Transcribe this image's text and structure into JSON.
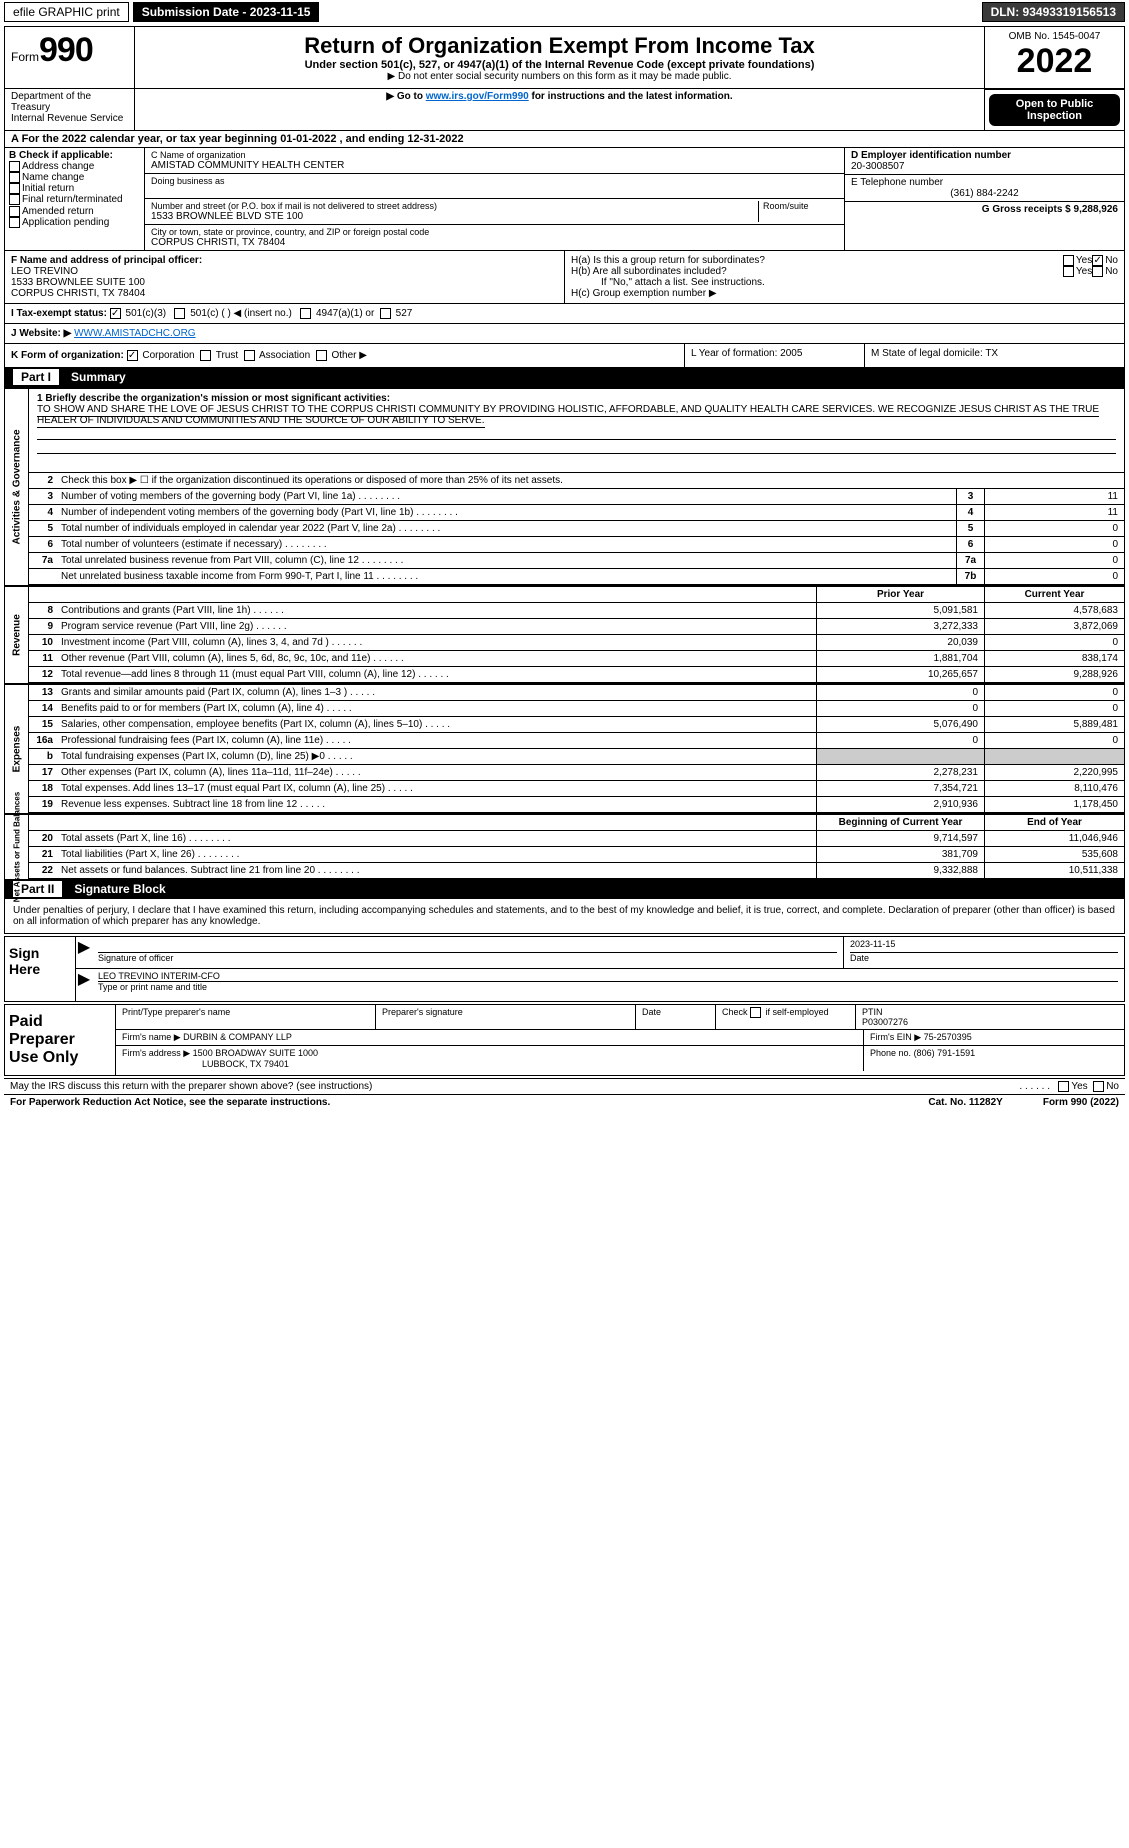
{
  "topbar": {
    "efile_label": "efile GRAPHIC print",
    "submission_label": "Submission Date - 2023-11-15",
    "dln_label": "DLN: 93493319156513"
  },
  "header": {
    "form_prefix": "Form",
    "form_number": "990",
    "title": "Return of Organization Exempt From Income Tax",
    "subtitle": "Under section 501(c), 527, or 4947(a)(1) of the Internal Revenue Code (except private foundations)",
    "warning": "▶ Do not enter social security numbers on this form as it may be made public.",
    "instructions_prefix": "▶ Go to ",
    "instructions_link": "www.irs.gov/Form990",
    "instructions_suffix": " for instructions and the latest information.",
    "omb": "OMB No. 1545-0047",
    "year": "2022",
    "open_public": "Open to Public Inspection",
    "dept": "Department of the Treasury\nInternal Revenue Service"
  },
  "line_a": "A For the 2022 calendar year, or tax year beginning 01-01-2022    , and ending 12-31-2022",
  "section_b": {
    "header": "B Check if applicable:",
    "items": [
      "Address change",
      "Name change",
      "Initial return",
      "Final return/terminated",
      "Amended return",
      "Application pending"
    ]
  },
  "section_c": {
    "name_label": "C Name of organization",
    "name": "AMISTAD COMMUNITY HEALTH CENTER",
    "dba_label": "Doing business as",
    "dba": "",
    "street_label": "Number and street (or P.O. box if mail is not delivered to street address)",
    "street": "1533 BROWNLEE BLVD STE 100",
    "room_label": "Room/suite",
    "city_label": "City or town, state or province, country, and ZIP or foreign postal code",
    "city": "CORPUS CHRISTI, TX  78404"
  },
  "section_d": {
    "ein_label": "D Employer identification number",
    "ein": "20-3008507"
  },
  "section_e": {
    "phone_label": "E Telephone number",
    "phone": "(361) 884-2242"
  },
  "section_g": {
    "gross_label": "G Gross receipts $ 9,288,926"
  },
  "section_f": {
    "label": "F Name and address of principal officer:",
    "name": "LEO TREVINO",
    "street": "1533 BROWNLEE SUITE 100",
    "city": "CORPUS CHRISTI, TX  78404"
  },
  "section_h": {
    "ha": "H(a)  Is this a group return for subordinates?",
    "hb": "H(b)  Are all subordinates included?",
    "hb_note": "If \"No,\" attach a list. See instructions.",
    "hc": "H(c)  Group exemption number ▶",
    "yes": "Yes",
    "no": "No"
  },
  "section_i": {
    "label": "I   Tax-exempt status:",
    "opt1": "501(c)(3)",
    "opt2": "501(c) (  ) ◀ (insert no.)",
    "opt3": "4947(a)(1) or",
    "opt4": "527"
  },
  "section_j": {
    "label": "J   Website: ▶",
    "value": " WWW.AMISTADCHC.ORG"
  },
  "section_k": {
    "label": "K Form of organization:",
    "opts": [
      "Corporation",
      "Trust",
      "Association",
      "Other ▶"
    ]
  },
  "section_l": {
    "label": "L Year of formation: 2005"
  },
  "section_m": {
    "label": "M State of legal domicile: TX"
  },
  "part1": {
    "header_num": "Part I",
    "header_title": "Summary",
    "mission_label": "1  Briefly describe the organization's mission or most significant activities:",
    "mission": "TO SHOW AND SHARE THE LOVE OF JESUS CHRIST TO THE CORPUS CHRISTI COMMUNITY BY PROVIDING HOLISTIC, AFFORDABLE, AND QUALITY HEALTH CARE SERVICES. WE RECOGNIZE JESUS CHRIST AS THE TRUE HEALER OF INDIVIDUALS AND COMMUNITIES AND THE SOURCE OF OUR ABILITY TO SERVE.",
    "line2": "Check this box ▶ ☐  if the organization discontinued its operations or disposed of more than 25% of its net assets.",
    "governance_label": "Activities & Governance",
    "gov_lines": [
      {
        "n": "3",
        "label": "Number of voting members of the governing body (Part VI, line 1a)",
        "box": "3",
        "val": "11"
      },
      {
        "n": "4",
        "label": "Number of independent voting members of the governing body (Part VI, line 1b)",
        "box": "4",
        "val": "11"
      },
      {
        "n": "5",
        "label": "Total number of individuals employed in calendar year 2022 (Part V, line 2a)",
        "box": "5",
        "val": "0"
      },
      {
        "n": "6",
        "label": "Total number of volunteers (estimate if necessary)",
        "box": "6",
        "val": "0"
      },
      {
        "n": "7a",
        "label": "Total unrelated business revenue from Part VIII, column (C), line 12",
        "box": "7a",
        "val": "0"
      },
      {
        "n": "",
        "label": "Net unrelated business taxable income from Form 990-T, Part I, line 11",
        "box": "7b",
        "val": "0"
      }
    ],
    "prior_year_header": "Prior Year",
    "current_year_header": "Current Year",
    "revenue_label": "Revenue",
    "rev_lines": [
      {
        "n": "8",
        "label": "Contributions and grants (Part VIII, line 1h)",
        "py": "5,091,581",
        "cy": "4,578,683"
      },
      {
        "n": "9",
        "label": "Program service revenue (Part VIII, line 2g)",
        "py": "3,272,333",
        "cy": "3,872,069"
      },
      {
        "n": "10",
        "label": "Investment income (Part VIII, column (A), lines 3, 4, and 7d )",
        "py": "20,039",
        "cy": "0"
      },
      {
        "n": "11",
        "label": "Other revenue (Part VIII, column (A), lines 5, 6d, 8c, 9c, 10c, and 11e)",
        "py": "1,881,704",
        "cy": "838,174"
      },
      {
        "n": "12",
        "label": "Total revenue—add lines 8 through 11 (must equal Part VIII, column (A), line 12)",
        "py": "10,265,657",
        "cy": "9,288,926"
      }
    ],
    "expenses_label": "Expenses",
    "exp_lines": [
      {
        "n": "13",
        "label": "Grants and similar amounts paid (Part IX, column (A), lines 1–3 )",
        "py": "0",
        "cy": "0"
      },
      {
        "n": "14",
        "label": "Benefits paid to or for members (Part IX, column (A), line 4)",
        "py": "0",
        "cy": "0"
      },
      {
        "n": "15",
        "label": "Salaries, other compensation, employee benefits (Part IX, column (A), lines 5–10)",
        "py": "5,076,490",
        "cy": "5,889,481"
      },
      {
        "n": "16a",
        "label": "Professional fundraising fees (Part IX, column (A), line 11e)",
        "py": "0",
        "cy": "0"
      },
      {
        "n": "b",
        "label": "Total fundraising expenses (Part IX, column (D), line 25) ▶0",
        "py": "",
        "cy": "",
        "shaded": true
      },
      {
        "n": "17",
        "label": "Other expenses (Part IX, column (A), lines 11a–11d, 11f–24e)",
        "py": "2,278,231",
        "cy": "2,220,995"
      },
      {
        "n": "18",
        "label": "Total expenses. Add lines 13–17 (must equal Part IX, column (A), line 25)",
        "py": "7,354,721",
        "cy": "8,110,476"
      },
      {
        "n": "19",
        "label": "Revenue less expenses. Subtract line 18 from line 12",
        "py": "2,910,936",
        "cy": "1,178,450"
      }
    ],
    "netassets_label": "Net Assets or Fund Balances",
    "beg_year_header": "Beginning of Current Year",
    "end_year_header": "End of Year",
    "na_lines": [
      {
        "n": "20",
        "label": "Total assets (Part X, line 16)",
        "py": "9,714,597",
        "cy": "11,046,946"
      },
      {
        "n": "21",
        "label": "Total liabilities (Part X, line 26)",
        "py": "381,709",
        "cy": "535,608"
      },
      {
        "n": "22",
        "label": "Net assets or fund balances. Subtract line 21 from line 20",
        "py": "9,332,888",
        "cy": "10,511,338"
      }
    ]
  },
  "part2": {
    "header_num": "Part II",
    "header_title": "Signature Block",
    "declaration": "Under penalties of perjury, I declare that I have examined this return, including accompanying schedules and statements, and to the best of my knowledge and belief, it is true, correct, and complete. Declaration of preparer (other than officer) is based on all information of which preparer has any knowledge."
  },
  "sign": {
    "left1": "Sign",
    "left2": "Here",
    "sig_officer_label": "Signature of officer",
    "date": "2023-11-15",
    "date_label": "Date",
    "name_title": "LEO TREVINO INTERIM-CFO",
    "name_title_label": "Type or print name and title"
  },
  "preparer": {
    "left1": "Paid",
    "left2": "Preparer",
    "left3": "Use Only",
    "col1": "Print/Type preparer's name",
    "col2": "Preparer's signature",
    "col3": "Date",
    "col4a": "Check",
    "col4b": "if self-employed",
    "col5_label": "PTIN",
    "col5": "P03007276",
    "firm_name_label": "Firm's name    ▶",
    "firm_name": "DURBIN & COMPANY LLP",
    "firm_ein_label": "Firm's EIN ▶",
    "firm_ein": "75-2570395",
    "firm_addr_label": "Firm's address ▶",
    "firm_addr1": "1500 BROADWAY SUITE 1000",
    "firm_addr2": "LUBBOCK, TX  79401",
    "phone_label": "Phone no.",
    "phone": "(806) 791-1591"
  },
  "footer": {
    "q": "May the IRS discuss this return with the preparer shown above? (see instructions)",
    "yes": "Yes",
    "no": "No",
    "paperwork": "For Paperwork Reduction Act Notice, see the separate instructions.",
    "cat": "Cat. No. 11282Y",
    "form": "Form 990 (2022)"
  }
}
